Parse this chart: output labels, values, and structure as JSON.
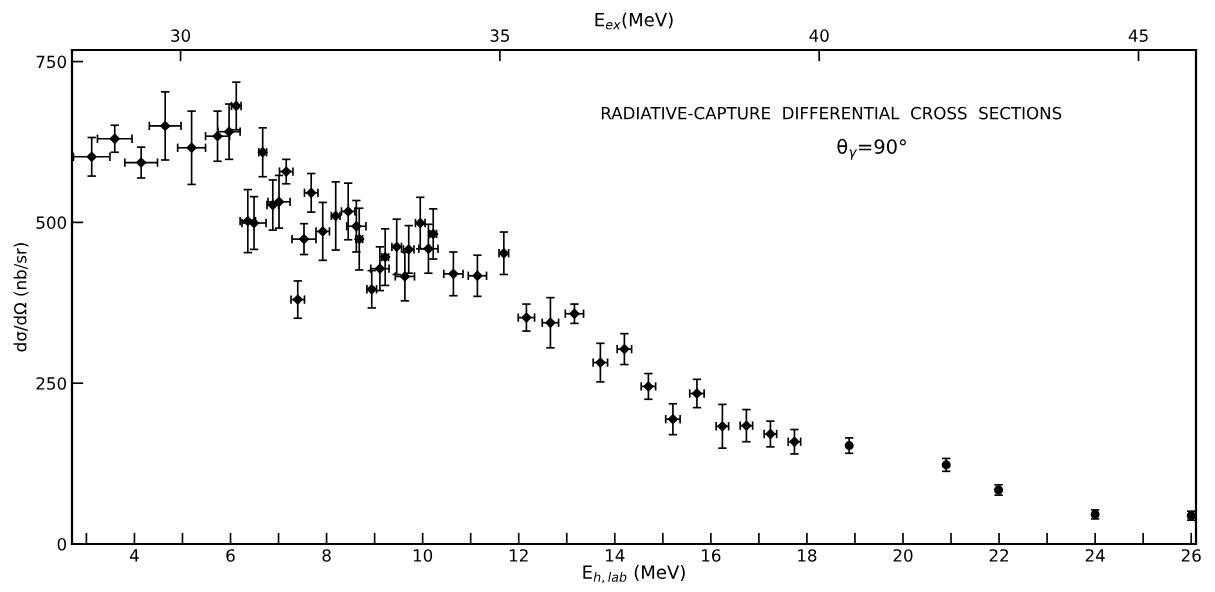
{
  "chart_data": {
    "type": "scatter",
    "xlabel": "E$_{h,lab}$ (MeV)",
    "ylabel": "dσ/dΩ (nb/sr)",
    "x2label": "E$_{ex}$(MeV)",
    "annotations": [
      "RADIATIVE-CAPTURE  DIFFERENTIAL  CROSS  SECTIONS",
      "θ$_{γ}$=90°"
    ],
    "xlim": [
      2.7,
      26.1
    ],
    "xticks": [
      {
        "value": 3,
        "label": null
      },
      4,
      {
        "value": 5,
        "label": null
      },
      6,
      {
        "value": 7,
        "label": null
      },
      8,
      {
        "value": 9,
        "label": null
      },
      10,
      {
        "value": 11,
        "label": null
      },
      12,
      {
        "value": 13,
        "label": null
      },
      14,
      {
        "value": 15,
        "label": null
      },
      16,
      {
        "value": 17,
        "label": null
      },
      18,
      {
        "value": 19,
        "label": null
      },
      20,
      {
        "value": 21,
        "label": null
      },
      22,
      {
        "value": 23,
        "label": null
      },
      24,
      {
        "value": 25,
        "label": null
      },
      26
    ],
    "x2lim": [
      28.3,
      45.9
    ],
    "x2ticks": [
      30,
      35,
      40,
      45
    ],
    "ylim": [
      0,
      768
    ],
    "yticks": [
      0,
      250,
      500,
      750
    ],
    "grid": false,
    "legend": false,
    "series": [
      {
        "color": "#000000",
        "marker": "diamond",
        "x": [
          3.11,
          3.59,
          4.14,
          4.64,
          5.19,
          5.73,
          5.97,
          6.12,
          6.67,
          6.36,
          6.49,
          6.88,
          7.01,
          7.16,
          7.4,
          7.53,
          7.68,
          7.92,
          8.19,
          8.45,
          8.62,
          8.68,
          8.94,
          9.11,
          9.22,
          9.46,
          9.63,
          9.71,
          9.95,
          10.12,
          10.22,
          10.64,
          11.14,
          11.69,
          12.16,
          12.66,
          13.16,
          13.7,
          14.2,
          14.7,
          15.21,
          15.71,
          16.24,
          16.74,
          17.24,
          17.74
        ],
        "values": [
          602,
          630,
          593,
          650,
          616,
          634,
          641,
          681,
          609,
          502,
          499,
          527,
          532,
          579,
          380,
          474,
          546,
          486,
          510,
          517,
          494,
          474,
          396,
          428,
          446,
          462,
          416,
          458,
          499,
          459,
          482,
          420,
          417,
          452,
          352,
          344,
          358,
          282,
          303,
          245,
          194,
          234,
          183,
          184,
          171,
          159
        ],
        "errors": [
          30,
          21,
          24,
          53,
          57,
          39,
          43,
          37,
          38,
          49,
          41,
          39,
          41,
          19,
          29,
          24,
          30,
          45,
          53,
          44,
          40,
          48,
          29,
          34,
          44,
          43,
          38,
          37,
          40,
          38,
          39,
          34,
          32,
          33,
          21,
          39,
          15,
          30,
          24,
          20,
          24,
          22,
          34,
          25,
          20,
          19
        ],
        "xerrors": [
          0.38,
          0.36,
          0.34,
          0.33,
          0.29,
          0.25,
          0.23,
          0.1,
          0.08,
          0.16,
          0.25,
          0.12,
          0.23,
          0.14,
          0.14,
          0.25,
          0.14,
          0.14,
          0.09,
          0.14,
          0.2,
          0.07,
          0.1,
          0.19,
          0.07,
          0.1,
          0.2,
          0.11,
          0.1,
          0.2,
          0.07,
          0.2,
          0.19,
          0.1,
          0.17,
          0.17,
          0.19,
          0.15,
          0.15,
          0.15,
          0.15,
          0.15,
          0.13,
          0.13,
          0.13,
          0.13
        ]
      },
      {
        "color": "#000000",
        "marker": "circle",
        "x": [
          18.88,
          20.9,
          21.99,
          24.0,
          26.0
        ],
        "values": [
          153,
          123,
          84,
          46,
          44
        ],
        "errors": [
          12,
          10,
          8,
          7,
          7
        ]
      }
    ]
  }
}
